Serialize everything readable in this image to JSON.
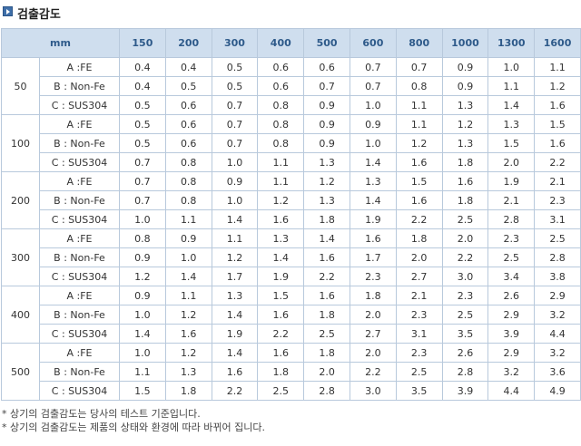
{
  "title": "검출감도",
  "header": {
    "unit": "mm",
    "columns": [
      "150",
      "200",
      "300",
      "400",
      "500",
      "600",
      "800",
      "1000",
      "1300",
      "1600"
    ]
  },
  "groups": [
    {
      "size": "50",
      "rows": [
        {
          "material": "A :FE",
          "values": [
            "0.4",
            "0.4",
            "0.5",
            "0.6",
            "0.6",
            "0.7",
            "0.7",
            "0.9",
            "1.0",
            "1.1"
          ]
        },
        {
          "material": "B : Non-Fe",
          "values": [
            "0.4",
            "0.5",
            "0.5",
            "0.6",
            "0.7",
            "0.7",
            "0.8",
            "0.9",
            "1.1",
            "1.2"
          ]
        },
        {
          "material": "C : SUS304",
          "values": [
            "0.5",
            "0.6",
            "0.7",
            "0.8",
            "0.9",
            "1.0",
            "1.1",
            "1.3",
            "1.4",
            "1.6"
          ]
        }
      ]
    },
    {
      "size": "100",
      "rows": [
        {
          "material": "A :FE",
          "values": [
            "0.5",
            "0.6",
            "0.7",
            "0.8",
            "0.9",
            "0.9",
            "1.1",
            "1.2",
            "1.3",
            "1.5"
          ]
        },
        {
          "material": "B : Non-Fe",
          "values": [
            "0.5",
            "0.6",
            "0.7",
            "0.8",
            "0.9",
            "1.0",
            "1.2",
            "1.3",
            "1.5",
            "1.6"
          ]
        },
        {
          "material": "C : SUS304",
          "values": [
            "0.7",
            "0.8",
            "1.0",
            "1.1",
            "1.3",
            "1.4",
            "1.6",
            "1.8",
            "2.0",
            "2.2"
          ]
        }
      ]
    },
    {
      "size": "200",
      "rows": [
        {
          "material": "A :FE",
          "values": [
            "0.7",
            "0.8",
            "0.9",
            "1.1",
            "1.2",
            "1.3",
            "1.5",
            "1.6",
            "1.9",
            "2.1"
          ]
        },
        {
          "material": "B : Non-Fe",
          "values": [
            "0.7",
            "0.8",
            "1.0",
            "1.2",
            "1.3",
            "1.4",
            "1.6",
            "1.8",
            "2.1",
            "2.3"
          ]
        },
        {
          "material": "C : SUS304",
          "values": [
            "1.0",
            "1.1",
            "1.4",
            "1.6",
            "1.8",
            "1.9",
            "2.2",
            "2.5",
            "2.8",
            "3.1"
          ]
        }
      ]
    },
    {
      "size": "300",
      "rows": [
        {
          "material": "A :FE",
          "values": [
            "0.8",
            "0.9",
            "1.1",
            "1.3",
            "1.4",
            "1.6",
            "1.8",
            "2.0",
            "2.3",
            "2.5"
          ]
        },
        {
          "material": "B : Non-Fe",
          "values": [
            "0.9",
            "1.0",
            "1.2",
            "1.4",
            "1.6",
            "1.7",
            "2.0",
            "2.2",
            "2.5",
            "2.8"
          ]
        },
        {
          "material": "C : SUS304",
          "values": [
            "1.2",
            "1.4",
            "1.7",
            "1.9",
            "2.2",
            "2.3",
            "2.7",
            "3.0",
            "3.4",
            "3.8"
          ]
        }
      ]
    },
    {
      "size": "400",
      "rows": [
        {
          "material": "A :FE",
          "values": [
            "0.9",
            "1.1",
            "1.3",
            "1.5",
            "1.6",
            "1.8",
            "2.1",
            "2.3",
            "2.6",
            "2.9"
          ]
        },
        {
          "material": "B : Non-Fe",
          "values": [
            "1.0",
            "1.2",
            "1.4",
            "1.6",
            "1.8",
            "2.0",
            "2.3",
            "2.5",
            "2.9",
            "3.2"
          ]
        },
        {
          "material": "C : SUS304",
          "values": [
            "1.4",
            "1.6",
            "1.9",
            "2.2",
            "2.5",
            "2.7",
            "3.1",
            "3.5",
            "3.9",
            "4.4"
          ]
        }
      ]
    },
    {
      "size": "500",
      "rows": [
        {
          "material": "A :FE",
          "values": [
            "1.0",
            "1.2",
            "1.4",
            "1.6",
            "1.8",
            "2.0",
            "2.3",
            "2.6",
            "2.9",
            "3.2"
          ]
        },
        {
          "material": "B : Non-Fe",
          "values": [
            "1.1",
            "1.3",
            "1.6",
            "1.8",
            "2.0",
            "2.2",
            "2.5",
            "2.8",
            "3.2",
            "3.6"
          ]
        },
        {
          "material": "C : SUS304",
          "values": [
            "1.5",
            "1.8",
            "2.2",
            "2.5",
            "2.8",
            "3.0",
            "3.5",
            "3.9",
            "4.4",
            "4.9"
          ]
        }
      ]
    }
  ],
  "notes": [
    "* 상기의 검출감도는 당사의 테스트 기준입니다.",
    "* 상기의 검출감도는 제품의 상태와 환경에 따라 바뀌어 집니다."
  ]
}
